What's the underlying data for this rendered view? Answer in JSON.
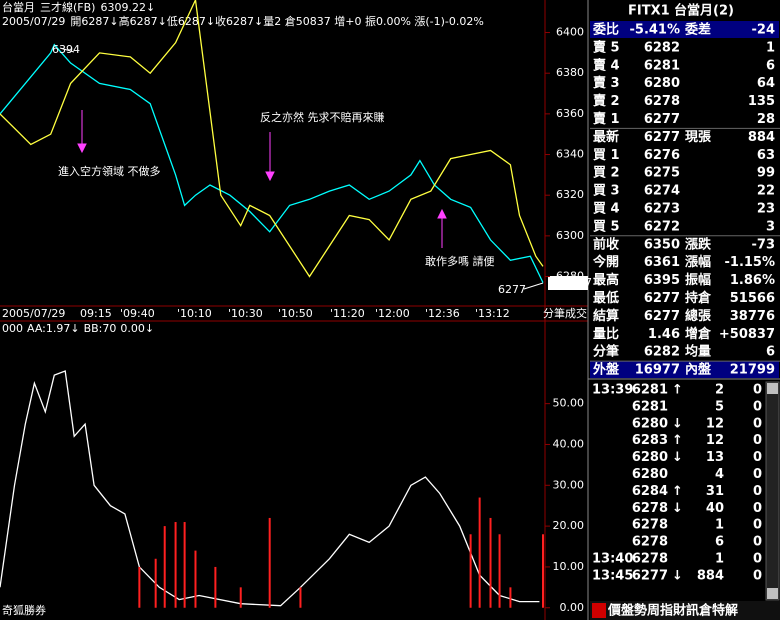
{
  "chart_header": {
    "symbol": "台當月",
    "indicator": "三才線(FB)",
    "last": "6309.22↓",
    "date": "2005/07/29",
    "stats": "開6287↓高6287↓低6287↓收6287↓量2 倉50837 增+0 振0.00% 漲(-1)-0.02%"
  },
  "chart_data": [
    {
      "type": "line",
      "ylim": [
        6266,
        6416
      ],
      "xlim": [
        0,
        300
      ],
      "yticks": [
        6280,
        6300,
        6320,
        6340,
        6360,
        6380,
        6400
      ],
      "time_labels": [
        "2005/07/29",
        "09:15",
        "'09:40",
        "'10:10",
        "'10:30",
        "'10:50",
        "'11:20",
        "'12:00",
        "'12:36",
        "'13:12",
        "分筆成交"
      ],
      "annotations": [
        "6394",
        "進入空方領域 不做多",
        "反之亦然  先求不賠再來賺",
        "敢作多嗎 請便",
        "6277",
        "6277"
      ],
      "series": [
        {
          "color": "#00ffff",
          "x": [
            0,
            28,
            30,
            39,
            55,
            72,
            83,
            91,
            97,
            102,
            108,
            116,
            127,
            138,
            149,
            160,
            171,
            182,
            193,
            204,
            215,
            227,
            232,
            240,
            249,
            260,
            271,
            282,
            293,
            300
          ],
          "values": [
            6360,
            6390,
            6394,
            6385,
            6375,
            6372,
            6365,
            6345,
            6330,
            6315,
            6320,
            6325,
            6320,
            6312,
            6302,
            6315,
            6318,
            6322,
            6325,
            6318,
            6322,
            6330,
            6337,
            6325,
            6318,
            6314,
            6298,
            6288,
            6290,
            6277
          ]
        },
        {
          "color": "#ffff40",
          "x": [
            0,
            17,
            28,
            39,
            55,
            72,
            83,
            97,
            108,
            122,
            133,
            138,
            149,
            160,
            171,
            182,
            193,
            204,
            215,
            227,
            238,
            249,
            260,
            271,
            282,
            287,
            296,
            300
          ],
          "values": [
            6360,
            6345,
            6350,
            6375,
            6390,
            6388,
            6380,
            6395,
            6416,
            6320,
            6305,
            6315,
            6310,
            6295,
            6280,
            6295,
            6310,
            6308,
            6298,
            6318,
            6322,
            6338,
            6340,
            6342,
            6335,
            6310,
            6290,
            6285
          ]
        }
      ]
    },
    {
      "type": "line",
      "ylim": [
        -3,
        70
      ],
      "xlim": [
        0,
        300
      ],
      "header": [
        "000",
        "AA:1.97↓",
        "BB:70",
        "0.00↓"
      ],
      "footer": "奇狐勝券",
      "yticks": [
        {
          "value": 0,
          "label": "0.00"
        },
        {
          "value": 10,
          "label": "10.00"
        },
        {
          "value": 20,
          "label": "20.00"
        },
        {
          "value": 30,
          "label": "30.00"
        },
        {
          "value": 40,
          "label": "40.00"
        },
        {
          "value": 50,
          "label": "50.00"
        }
      ],
      "series": [
        {
          "color": "#ffffff",
          "x": [
            0,
            8,
            14,
            19,
            25,
            30,
            36,
            41,
            47,
            52,
            61,
            69,
            77,
            88,
            99,
            110,
            133,
            155,
            166,
            182,
            193,
            204,
            215,
            227,
            235,
            243,
            254,
            265,
            276,
            287,
            298
          ],
          "values": [
            5,
            30,
            45,
            55,
            48,
            57,
            58,
            42,
            45,
            30,
            25,
            23,
            10,
            5,
            2,
            3,
            1,
            0.5,
            5,
            12,
            18,
            16,
            20,
            30,
            32,
            28,
            20,
            8,
            3,
            1.5,
            1.5
          ]
        },
        {
          "color": "#ff2020",
          "type": "bar",
          "x": [
            77,
            86,
            91,
            97,
            102,
            108,
            119,
            133,
            149,
            166,
            260,
            265,
            271,
            276,
            282,
            300
          ],
          "values": [
            10,
            12,
            20,
            21,
            21,
            14,
            10,
            5,
            22,
            5,
            18,
            27,
            22,
            18,
            5,
            18
          ]
        }
      ]
    }
  ],
  "quote": {
    "symbol": "FITX1",
    "name": "台當月(2)",
    "rows": [
      [
        "委比",
        "-5.41%",
        "委差",
        "-24"
      ],
      [
        "賣 5",
        "6282",
        null,
        "1"
      ],
      [
        "賣 4",
        "6281",
        null,
        "6"
      ],
      [
        "賣 3",
        "6280",
        null,
        "64"
      ],
      [
        "賣 2",
        "6278",
        null,
        "135"
      ],
      [
        "賣 1",
        "6277",
        null,
        "28"
      ],
      [
        "最新",
        "6277",
        "現張",
        "884"
      ],
      [
        "買 1",
        "6276",
        null,
        "63"
      ],
      [
        "買 2",
        "6275",
        null,
        "99"
      ],
      [
        "買 3",
        "6274",
        null,
        "22"
      ],
      [
        "買 4",
        "6273",
        null,
        "23"
      ],
      [
        "買 5",
        "6272",
        null,
        "3"
      ],
      [
        "前收",
        "6350",
        "漲跌",
        "-73"
      ],
      [
        "今開",
        "6361",
        "漲幅",
        "-1.15%"
      ],
      [
        "最高",
        "6395",
        "振幅",
        "1.86%"
      ],
      [
        "最低",
        "6277",
        "持倉",
        "51566"
      ],
      [
        "結算",
        "6277",
        "總張",
        "38776"
      ],
      [
        "量比",
        "1.46",
        "增倉",
        "+50837"
      ],
      [
        "分筆",
        "6282",
        "均量",
        "6"
      ],
      [
        "外盤",
        "16977",
        "內盤",
        "21799"
      ]
    ]
  },
  "ticks": [
    {
      "time": "13:39",
      "price": "6281",
      "dir": "↑",
      "vol": "2",
      "flag": "0",
      "color": "#ff2020"
    },
    {
      "time": null,
      "price": "6281",
      "dir": null,
      "vol": "5",
      "flag": "0",
      "color": "#ff2020"
    },
    {
      "time": null,
      "price": "6280",
      "dir": "↓",
      "vol": "12",
      "flag": "0",
      "color": "#40e0ff"
    },
    {
      "time": null,
      "price": "6283",
      "dir": "↑",
      "vol": "12",
      "flag": "0",
      "color": "#ff2020"
    },
    {
      "time": null,
      "price": "6280",
      "dir": "↓",
      "vol": "13",
      "flag": "0",
      "color": "#40e0ff"
    },
    {
      "time": null,
      "price": "6280",
      "dir": null,
      "vol": "4",
      "flag": "0",
      "color": "#40e0ff"
    },
    {
      "time": null,
      "price": "6284",
      "dir": "↑",
      "vol": "31",
      "flag": "0",
      "color": "#ff2020"
    },
    {
      "time": null,
      "price": "6278",
      "dir": "↓",
      "vol": "40",
      "flag": "0",
      "color": "#40e0ff"
    },
    {
      "time": null,
      "price": "6278",
      "dir": null,
      "vol": "1",
      "flag": "0",
      "color": "#40e0ff"
    },
    {
      "time": null,
      "price": "6278",
      "dir": null,
      "vol": "6",
      "flag": "0",
      "color": "#40e0ff"
    },
    {
      "time": "13:40",
      "price": "6278",
      "dir": null,
      "vol": "1",
      "flag": "0",
      "color": "#ffffff"
    },
    {
      "time": "13:45",
      "price": "6277",
      "dir": "↓",
      "vol": "884",
      "flag": "0",
      "color": "#40e0ff"
    }
  ],
  "footer_menu": "價盤勢周指財訊倉特解"
}
